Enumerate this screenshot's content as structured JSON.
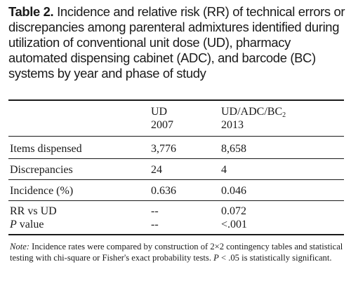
{
  "caption": {
    "label": "Table 2.",
    "text": "Incidence and relative risk (RR) of technical errors or discrepancies among parenteral admixtures identified during utilization of conventional unit dose (UD), pharmacy automated dispensing cabinet (ADC), and barcode (BC) systems by year and phase of study"
  },
  "table": {
    "headers": {
      "col1": {
        "line1": "UD",
        "line2": "2007"
      },
      "col2": {
        "line1": "UD/ADC/BC",
        "line1_sub": "2",
        "line2": "2013"
      }
    },
    "rows": [
      {
        "label": "Items dispensed",
        "ud": "3,776",
        "combo": "8,658"
      },
      {
        "label": "Discrepancies",
        "ud": "24",
        "combo": "4"
      },
      {
        "label": "Incidence (%)",
        "ud": "0.636",
        "combo": "0.046"
      },
      {
        "label": "RR vs UD",
        "ud": "--",
        "combo": "0.072"
      },
      {
        "label_italic": "P",
        "label_rest": " value",
        "ud": "--",
        "combo": "<.001"
      }
    ]
  },
  "note": {
    "label": "Note:",
    "text1": " Incidence rates were compared by construction of 2×2 contingency tables and statistical testing with chi-square or Fisher's exact probability tests. ",
    "p_italic": "P",
    "text2": " < .05 is statistically significant."
  }
}
